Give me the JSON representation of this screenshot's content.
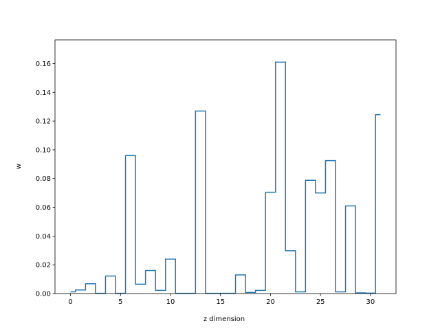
{
  "chart_data": {
    "type": "line",
    "drawstyle": "steps-mid",
    "title": "",
    "xlabel": "z dimension",
    "ylabel": "w",
    "xlim": [
      -1.55,
      32.55
    ],
    "ylim": [
      0,
      0.1765
    ],
    "grid": false,
    "xticks": [
      0,
      5,
      10,
      15,
      20,
      25,
      30
    ],
    "xtick_labels": [
      "0",
      "5",
      "10",
      "15",
      "20",
      "25",
      "30"
    ],
    "yticks": [
      0.0,
      0.02,
      0.04,
      0.06,
      0.08,
      0.1,
      0.12,
      0.14,
      0.16
    ],
    "ytick_labels": [
      "0.00",
      "0.02",
      "0.04",
      "0.06",
      "0.08",
      "0.10",
      "0.12",
      "0.14",
      "0.16"
    ],
    "color": "#1f77b4",
    "x": [
      0,
      1,
      2,
      3,
      4,
      5,
      6,
      7,
      8,
      9,
      10,
      11,
      12,
      13,
      14,
      15,
      16,
      17,
      18,
      19,
      20,
      21,
      22,
      23,
      24,
      25,
      26,
      27,
      28,
      29,
      30,
      31
    ],
    "y": [
      0.0012,
      0.0025,
      0.0068,
      0.0002,
      0.0122,
      0.0002,
      0.096,
      0.0065,
      0.016,
      0.0022,
      0.024,
      0.0002,
      0.0002,
      0.127,
      0.0002,
      0.0002,
      0.0002,
      0.013,
      0.0008,
      0.0022,
      0.0705,
      0.161,
      0.0298,
      0.0012,
      0.0788,
      0.07,
      0.0925,
      0.0012,
      0.061,
      0.0005,
      0.0003,
      0.1245
    ]
  }
}
